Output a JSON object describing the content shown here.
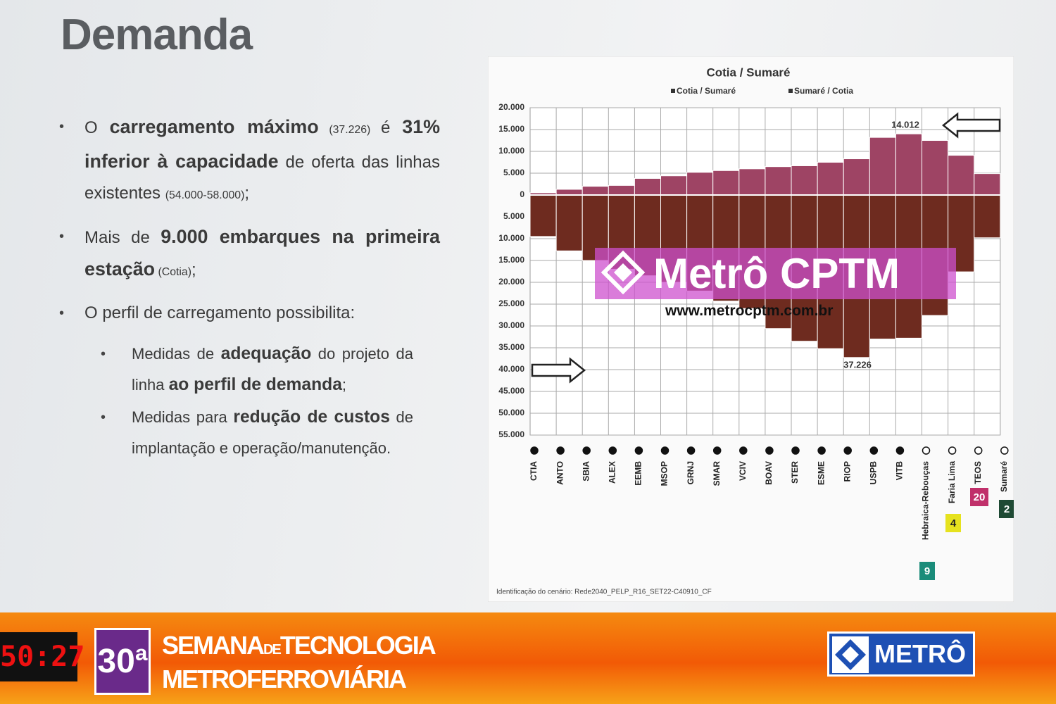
{
  "title": "Demanda",
  "bullets": [
    {
      "level": 1,
      "parts": [
        {
          "t": "O ",
          "s": "n"
        },
        {
          "t": "carregamento máximo",
          "s": "b"
        },
        {
          "t": " (37.226) ",
          "s": "small"
        },
        {
          "t": "é ",
          "s": "n"
        },
        {
          "t": "31% inferior à capacidade",
          "s": "b"
        },
        {
          "t": " de oferta das linhas existentes ",
          "s": "n"
        },
        {
          "t": "(54.000-58.000)",
          "s": "small"
        },
        {
          "t": ";",
          "s": "n"
        }
      ]
    },
    {
      "level": 1,
      "parts": [
        {
          "t": "Mais de ",
          "s": "n"
        },
        {
          "t": "9.000 embarques na primeira estação",
          "s": "b"
        },
        {
          "t": " (Cotia)",
          "s": "small"
        },
        {
          "t": ";",
          "s": "n"
        }
      ]
    },
    {
      "level": 1,
      "parts": [
        {
          "t": "O perfil de carregamento possibilita:",
          "s": "n"
        }
      ]
    },
    {
      "level": 2,
      "parts": [
        {
          "t": "Medidas de ",
          "s": "n"
        },
        {
          "t": "adequação",
          "s": "b"
        },
        {
          "t": " do projeto da linha ",
          "s": "n"
        },
        {
          "t": "ao perfil de demanda",
          "s": "b"
        },
        {
          "t": ";",
          "s": "n"
        }
      ]
    },
    {
      "level": 2,
      "parts": [
        {
          "t": "Medidas para ",
          "s": "n"
        },
        {
          "t": "redução de custos",
          "s": "b"
        },
        {
          "t": " de implantação e operação/manutenção.",
          "s": "n"
        }
      ]
    }
  ],
  "chart_data": {
    "type": "bar",
    "title": "Cotia / Sumaré",
    "categories": [
      "CTIA",
      "ANTO",
      "SBIA",
      "ALEX",
      "EEMB",
      "MSOP",
      "GRNJ",
      "SMAR",
      "VCIV",
      "BOAV",
      "STER",
      "ESME",
      "RIOP",
      "USPB",
      "VITB",
      "Hebraica-Rebouças",
      "Faria Lima",
      "TEOS",
      "Sumaré"
    ],
    "series": [
      {
        "name": "Cotia / Sumaré",
        "color": "#9e4464",
        "values": [
          500,
          1300,
          2000,
          2200,
          3800,
          4400,
          5200,
          5600,
          6000,
          6500,
          6700,
          7500,
          8300,
          13200,
          14012,
          12500,
          9100,
          4900,
          null
        ]
      },
      {
        "name": "Sumaré / Cotia",
        "color": "#6e2b1f",
        "values": [
          -9500,
          -12800,
          -15000,
          -17000,
          -18500,
          -20000,
          -22000,
          -24300,
          -26000,
          -30600,
          -33500,
          -35200,
          -37226,
          -33000,
          -32800,
          -27600,
          -17600,
          -9800,
          null
        ]
      }
    ],
    "ylim": [
      -55000,
      20000
    ],
    "yticks": [
      {
        "value": 20000,
        "label": "20.000"
      },
      {
        "value": 15000,
        "label": "15.000"
      },
      {
        "value": 10000,
        "label": "10.000"
      },
      {
        "value": 5000,
        "label": "5.000"
      },
      0,
      {
        "value": -5000,
        "label": "5.000"
      },
      {
        "value": -10000,
        "label": "10.000"
      },
      {
        "value": -15000,
        "label": "15.000"
      },
      {
        "value": -20000,
        "label": "20.000"
      },
      {
        "value": -25000,
        "label": "25.000"
      },
      {
        "value": -30000,
        "label": "30.000"
      },
      {
        "value": -35000,
        "label": "35.000"
      },
      {
        "value": -40000,
        "label": "40.000"
      },
      {
        "value": -45000,
        "label": "45.000"
      },
      {
        "value": -50000,
        "label": "50.000"
      },
      {
        "value": -55000,
        "label": "55.000"
      }
    ],
    "grid": true,
    "annotations": [
      "14.012",
      "37.226"
    ],
    "line_badges": [
      "9",
      "4",
      "20",
      "2"
    ],
    "footnote": "Identificação do cenário: Rede2040_PELP_R16_SET22-C40910_CF"
  },
  "watermark": {
    "brand": "Metrô CPTM",
    "url": "www.metrocptm.com.br"
  },
  "footer": {
    "clock": "50:27",
    "edition": "30ª",
    "line1a": "SEMANA",
    "line1b": "DE",
    "line1c": "TECNOLOGIA",
    "line2": "METROFERROVIÁRIA",
    "logo": "METRÔ"
  }
}
